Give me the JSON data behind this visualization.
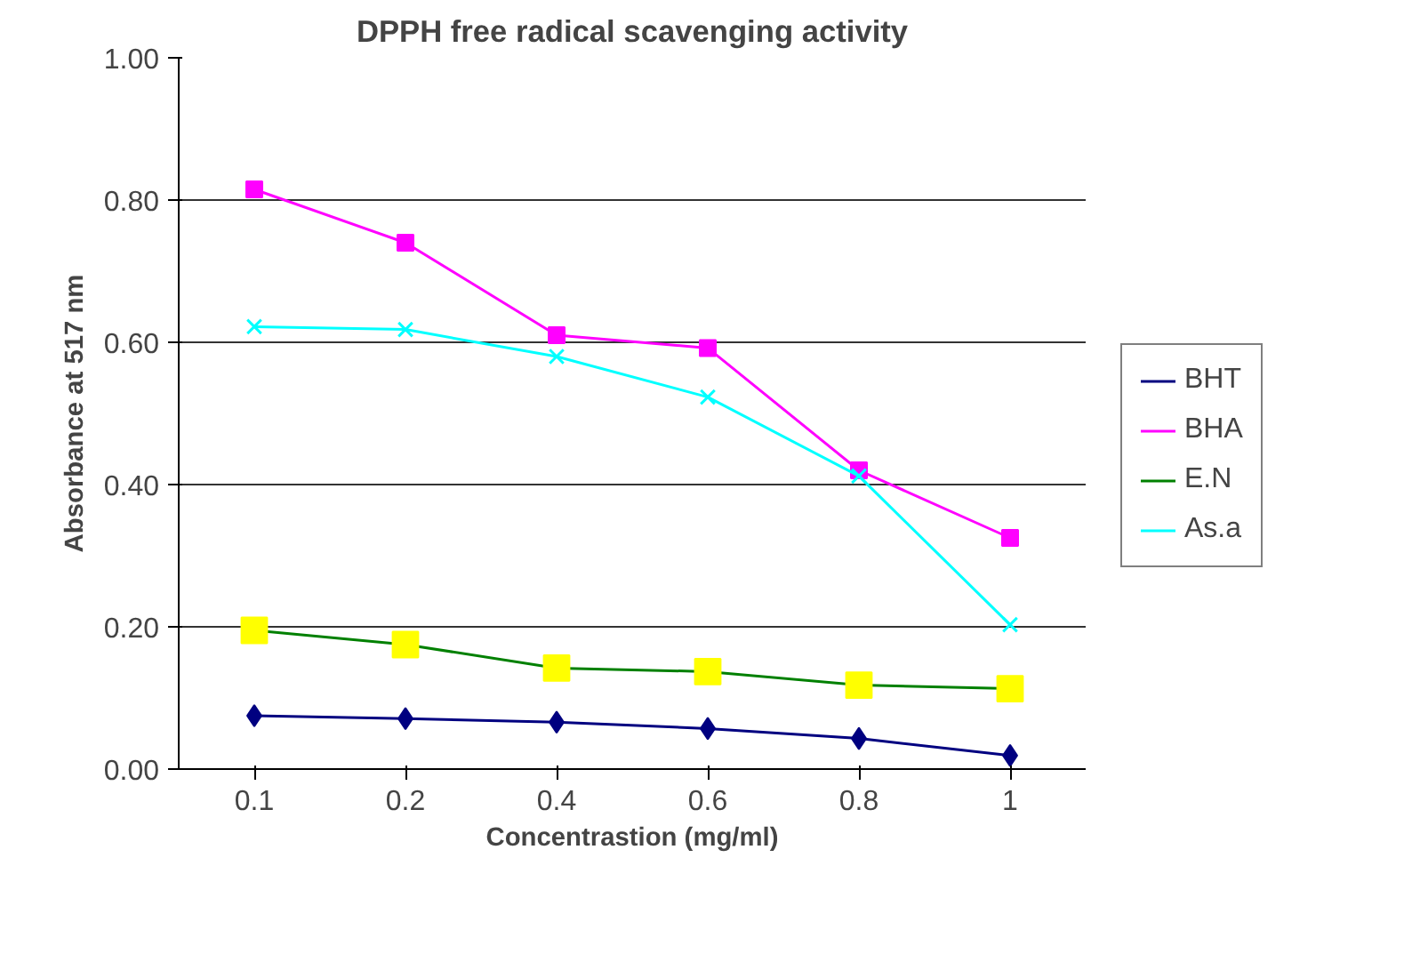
{
  "chart_data": {
    "type": "line",
    "title": "DPPH free radical scavenging activity",
    "xlabel": "Concentrastion (mg/ml)",
    "ylabel": "Absorbance at 517 nm",
    "categories": [
      "0.1",
      "0.2",
      "0.4",
      "0.6",
      "0.8",
      "1"
    ],
    "ylim": [
      0,
      1
    ],
    "yticks": [
      {
        "value": 0,
        "label": "0.00"
      },
      {
        "value": 0.2,
        "label": "0.20"
      },
      {
        "value": 0.4,
        "label": "0.40"
      },
      {
        "value": 0.6,
        "label": "0.60"
      },
      {
        "value": 0.8,
        "label": "0.80"
      },
      {
        "value": 1,
        "label": "1.00"
      }
    ],
    "grid": "y",
    "legend": "right",
    "series": [
      {
        "name": "BHT",
        "color": "#000080",
        "marker": "diamond",
        "values": [
          0.075,
          0.071,
          0.066,
          0.057,
          0.043,
          0.019
        ]
      },
      {
        "name": "BHA",
        "color": "#ff00ff",
        "marker": "square",
        "values": [
          0.815,
          0.74,
          0.61,
          0.592,
          0.42,
          0.325
        ]
      },
      {
        "name": "E.N",
        "color": "#008000",
        "colors": [
          "#ffff00",
          "#ffff00",
          "#ffff00",
          "#ffff00",
          "#ffff00",
          "#ffff00"
        ],
        "marker": "square",
        "values": [
          0.195,
          0.175,
          0.142,
          0.137,
          0.118,
          0.113
        ]
      },
      {
        "name": "As.a",
        "color": "#00ffff",
        "marker": "cross",
        "values": [
          0.622,
          0.618,
          0.58,
          0.523,
          0.412,
          0.203
        ]
      }
    ]
  }
}
